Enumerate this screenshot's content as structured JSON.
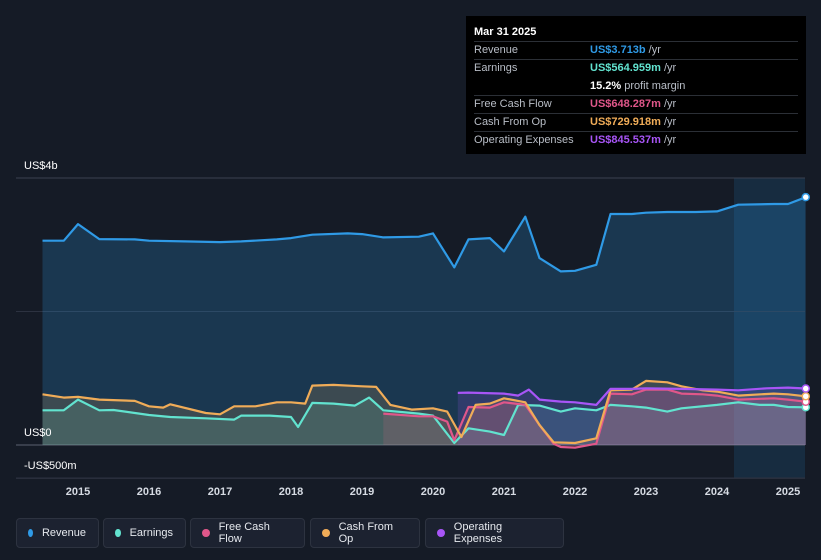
{
  "tooltip": {
    "date": "Mar 31 2025",
    "rows": [
      {
        "label": "Revenue",
        "value": "US$3.713b",
        "unit": "/yr",
        "color": "#2f9ae6"
      },
      {
        "label": "Earnings",
        "value": "US$564.959m",
        "unit": "/yr",
        "color": "#62e3cf"
      },
      {
        "label": "",
        "value": "15.2%",
        "unit": "profit margin",
        "color": "#ffffff"
      },
      {
        "label": "Free Cash Flow",
        "value": "US$648.287m",
        "unit": "/yr",
        "color": "#e0578a"
      },
      {
        "label": "Cash From Op",
        "value": "US$729.918m",
        "unit": "/yr",
        "color": "#f0ac58"
      },
      {
        "label": "Operating Expenses",
        "value": "US$845.537m",
        "unit": "/yr",
        "color": "#a855f7"
      }
    ]
  },
  "axis": {
    "y_top_label": "US$4b",
    "y_zero_label": "US$0",
    "y_neg_label": "-US$500m"
  },
  "legend": [
    {
      "label": "Revenue",
      "color": "#2f9ae6"
    },
    {
      "label": "Earnings",
      "color": "#62e3cf"
    },
    {
      "label": "Free Cash Flow",
      "color": "#e0578a"
    },
    {
      "label": "Cash From Op",
      "color": "#f0ac58"
    },
    {
      "label": "Operating Expenses",
      "color": "#a855f7"
    }
  ],
  "chart_data": {
    "type": "area",
    "x_ticks": [
      "2015",
      "2016",
      "2017",
      "2018",
      "2019",
      "2020",
      "2021",
      "2022",
      "2023",
      "2024",
      "2025"
    ],
    "ylim": [
      -500,
      4000
    ],
    "y_unit": "US$m",
    "grid": true,
    "legend_position": "bottom",
    "series": [
      {
        "name": "Revenue",
        "color": "#2f9ae6",
        "points": [
          [
            2014.5,
            3060
          ],
          [
            2014.8,
            3060
          ],
          [
            2015.0,
            3310
          ],
          [
            2015.3,
            3085
          ],
          [
            2015.8,
            3080
          ],
          [
            2016.0,
            3060
          ],
          [
            2016.5,
            3050
          ],
          [
            2017.0,
            3040
          ],
          [
            2017.3,
            3050
          ],
          [
            2017.8,
            3080
          ],
          [
            2018.0,
            3100
          ],
          [
            2018.3,
            3150
          ],
          [
            2018.8,
            3170
          ],
          [
            2019.0,
            3160
          ],
          [
            2019.3,
            3110
          ],
          [
            2019.8,
            3120
          ],
          [
            2020.0,
            3170
          ],
          [
            2020.3,
            2660
          ],
          [
            2020.5,
            3080
          ],
          [
            2020.8,
            3100
          ],
          [
            2021.0,
            2900
          ],
          [
            2021.3,
            3420
          ],
          [
            2021.5,
            2800
          ],
          [
            2021.8,
            2600
          ],
          [
            2022.0,
            2610
          ],
          [
            2022.3,
            2700
          ],
          [
            2022.5,
            3460
          ],
          [
            2022.8,
            3460
          ],
          [
            2023.0,
            3480
          ],
          [
            2023.3,
            3490
          ],
          [
            2023.7,
            3490
          ],
          [
            2024.0,
            3500
          ],
          [
            2024.3,
            3600
          ],
          [
            2024.8,
            3610
          ],
          [
            2025.0,
            3610
          ],
          [
            2025.25,
            3713
          ]
        ]
      },
      {
        "name": "Earnings",
        "color": "#62e3cf",
        "points": [
          [
            2014.5,
            520
          ],
          [
            2014.8,
            520
          ],
          [
            2015.0,
            680
          ],
          [
            2015.3,
            520
          ],
          [
            2015.5,
            525
          ],
          [
            2016.0,
            450
          ],
          [
            2016.3,
            420
          ],
          [
            2016.8,
            400
          ],
          [
            2017.2,
            380
          ],
          [
            2017.3,
            440
          ],
          [
            2017.7,
            440
          ],
          [
            2018.0,
            420
          ],
          [
            2018.1,
            270
          ],
          [
            2018.3,
            630
          ],
          [
            2018.6,
            620
          ],
          [
            2018.9,
            590
          ],
          [
            2019.1,
            710
          ],
          [
            2019.3,
            520
          ],
          [
            2019.8,
            470
          ],
          [
            2020.0,
            440
          ],
          [
            2020.3,
            30
          ],
          [
            2020.5,
            250
          ],
          [
            2020.8,
            200
          ],
          [
            2021.0,
            150
          ],
          [
            2021.2,
            600
          ],
          [
            2021.5,
            590
          ],
          [
            2021.8,
            500
          ],
          [
            2022.0,
            550
          ],
          [
            2022.3,
            520
          ],
          [
            2022.5,
            600
          ],
          [
            2022.8,
            580
          ],
          [
            2023.0,
            560
          ],
          [
            2023.3,
            500
          ],
          [
            2023.5,
            550
          ],
          [
            2024.0,
            600
          ],
          [
            2024.3,
            640
          ],
          [
            2024.6,
            600
          ],
          [
            2024.8,
            600
          ],
          [
            2025.0,
            570
          ],
          [
            2025.25,
            565
          ]
        ]
      },
      {
        "name": "Free Cash Flow",
        "color": "#e0578a",
        "points": [
          [
            2019.3,
            470
          ],
          [
            2019.8,
            430
          ],
          [
            2020.0,
            430
          ],
          [
            2020.2,
            350
          ],
          [
            2020.3,
            70
          ],
          [
            2020.5,
            570
          ],
          [
            2020.8,
            560
          ],
          [
            2021.0,
            640
          ],
          [
            2021.3,
            600
          ],
          [
            2021.5,
            300
          ],
          [
            2021.7,
            20
          ],
          [
            2021.8,
            -30
          ],
          [
            2022.0,
            -40
          ],
          [
            2022.3,
            20
          ],
          [
            2022.5,
            770
          ],
          [
            2022.8,
            760
          ],
          [
            2023.0,
            830
          ],
          [
            2023.3,
            830
          ],
          [
            2023.5,
            770
          ],
          [
            2023.8,
            760
          ],
          [
            2024.0,
            740
          ],
          [
            2024.3,
            680
          ],
          [
            2024.8,
            700
          ],
          [
            2025.0,
            680
          ],
          [
            2025.25,
            648
          ]
        ]
      },
      {
        "name": "Cash From Op",
        "color": "#f0ac58",
        "points": [
          [
            2014.5,
            760
          ],
          [
            2014.8,
            710
          ],
          [
            2015.0,
            720
          ],
          [
            2015.3,
            680
          ],
          [
            2015.8,
            660
          ],
          [
            2016.0,
            580
          ],
          [
            2016.2,
            560
          ],
          [
            2016.3,
            610
          ],
          [
            2016.8,
            480
          ],
          [
            2017.0,
            460
          ],
          [
            2017.2,
            580
          ],
          [
            2017.5,
            580
          ],
          [
            2017.8,
            640
          ],
          [
            2018.0,
            640
          ],
          [
            2018.2,
            620
          ],
          [
            2018.3,
            890
          ],
          [
            2018.6,
            900
          ],
          [
            2019.0,
            880
          ],
          [
            2019.2,
            870
          ],
          [
            2019.4,
            600
          ],
          [
            2019.7,
            530
          ],
          [
            2020.0,
            550
          ],
          [
            2020.2,
            500
          ],
          [
            2020.4,
            120
          ],
          [
            2020.6,
            600
          ],
          [
            2020.8,
            620
          ],
          [
            2021.0,
            700
          ],
          [
            2021.3,
            640
          ],
          [
            2021.5,
            300
          ],
          [
            2021.7,
            40
          ],
          [
            2022.0,
            30
          ],
          [
            2022.3,
            100
          ],
          [
            2022.5,
            820
          ],
          [
            2022.8,
            830
          ],
          [
            2023.0,
            960
          ],
          [
            2023.3,
            940
          ],
          [
            2023.5,
            880
          ],
          [
            2023.8,
            820
          ],
          [
            2024.0,
            800
          ],
          [
            2024.3,
            740
          ],
          [
            2024.8,
            770
          ],
          [
            2025.0,
            760
          ],
          [
            2025.25,
            730
          ]
        ]
      },
      {
        "name": "Operating Expenses",
        "color": "#a855f7",
        "points": [
          [
            2020.35,
            780
          ],
          [
            2020.5,
            785
          ],
          [
            2021.0,
            770
          ],
          [
            2021.2,
            740
          ],
          [
            2021.35,
            830
          ],
          [
            2021.5,
            680
          ],
          [
            2021.8,
            650
          ],
          [
            2022.0,
            640
          ],
          [
            2022.3,
            600
          ],
          [
            2022.5,
            840
          ],
          [
            2022.8,
            840
          ],
          [
            2023.0,
            850
          ],
          [
            2023.5,
            840
          ],
          [
            2024.0,
            830
          ],
          [
            2024.3,
            820
          ],
          [
            2024.7,
            850
          ],
          [
            2025.0,
            860
          ],
          [
            2025.25,
            846
          ]
        ]
      }
    ]
  }
}
